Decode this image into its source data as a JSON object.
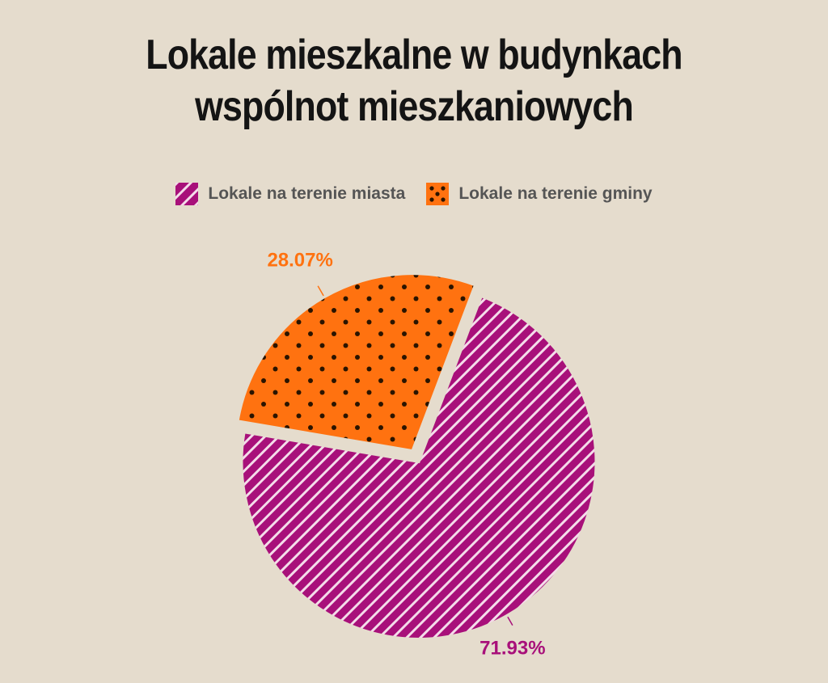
{
  "colors": {
    "background": "#e5dccd",
    "miasta": "#a8107a",
    "gminy": "#ff7210",
    "title": "#141414",
    "legend_text": "#555555"
  },
  "chart_data": {
    "type": "pie",
    "title": "Lokale mieszkalne w budynkach wspólnot mieszkaniowych",
    "title_lines": [
      "Lokale mieszkalne w budynkach",
      "wspólnot mieszkaniowych"
    ],
    "legend_position": "top",
    "series": [
      {
        "name": "Lokale na terenie miasta",
        "value": 71.93,
        "label": "71.93%",
        "color": "#a8107a",
        "pattern": "diagonal-stripes"
      },
      {
        "name": "Lokale na terenie gminy",
        "value": 28.07,
        "label": "28.07%",
        "color": "#ff7210",
        "pattern": "dots"
      }
    ]
  }
}
